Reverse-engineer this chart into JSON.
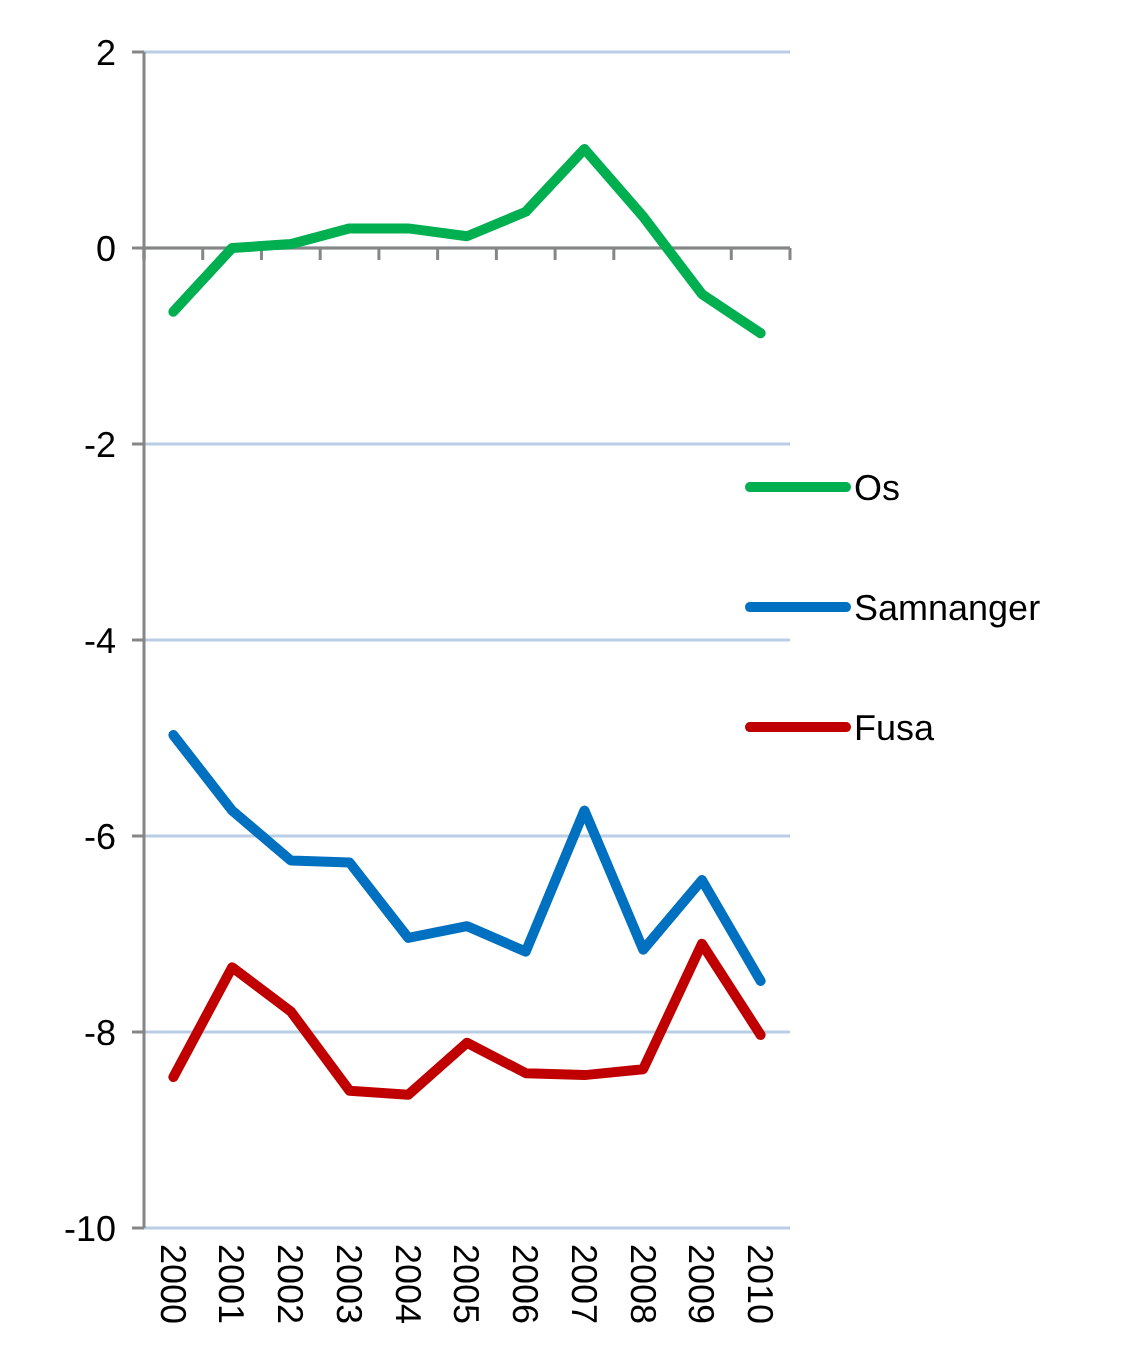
{
  "chart_data": {
    "type": "line",
    "categories": [
      "2000",
      "2001",
      "2002",
      "2003",
      "2004",
      "2005",
      "2006",
      "2007",
      "2008",
      "2009",
      "2010"
    ],
    "series": [
      {
        "name": "Os",
        "color": "#00b050",
        "values": [
          -0.65,
          0,
          0.04,
          0.2,
          0.2,
          0.12,
          0.37,
          1.01,
          0.32,
          -0.47,
          -0.87
        ]
      },
      {
        "name": "Samnanger",
        "color": "#0070c0",
        "values": [
          -4.97,
          -5.74,
          -6.25,
          -6.27,
          -7.04,
          -6.92,
          -7.18,
          -5.74,
          -7.16,
          -6.45,
          -7.48
        ]
      },
      {
        "name": "Fusa",
        "color": "#c00000",
        "values": [
          -8.46,
          -7.34,
          -7.79,
          -8.6,
          -8.64,
          -8.11,
          -8.42,
          -8.44,
          -8.38,
          -7.1,
          -8.03
        ]
      }
    ],
    "ylim": [
      -10,
      2
    ],
    "yticks": [
      -10,
      -8,
      -6,
      -4,
      -2,
      0,
      2
    ],
    "grid": "y",
    "legend": "right",
    "marker": "none",
    "line_style": "solid"
  }
}
